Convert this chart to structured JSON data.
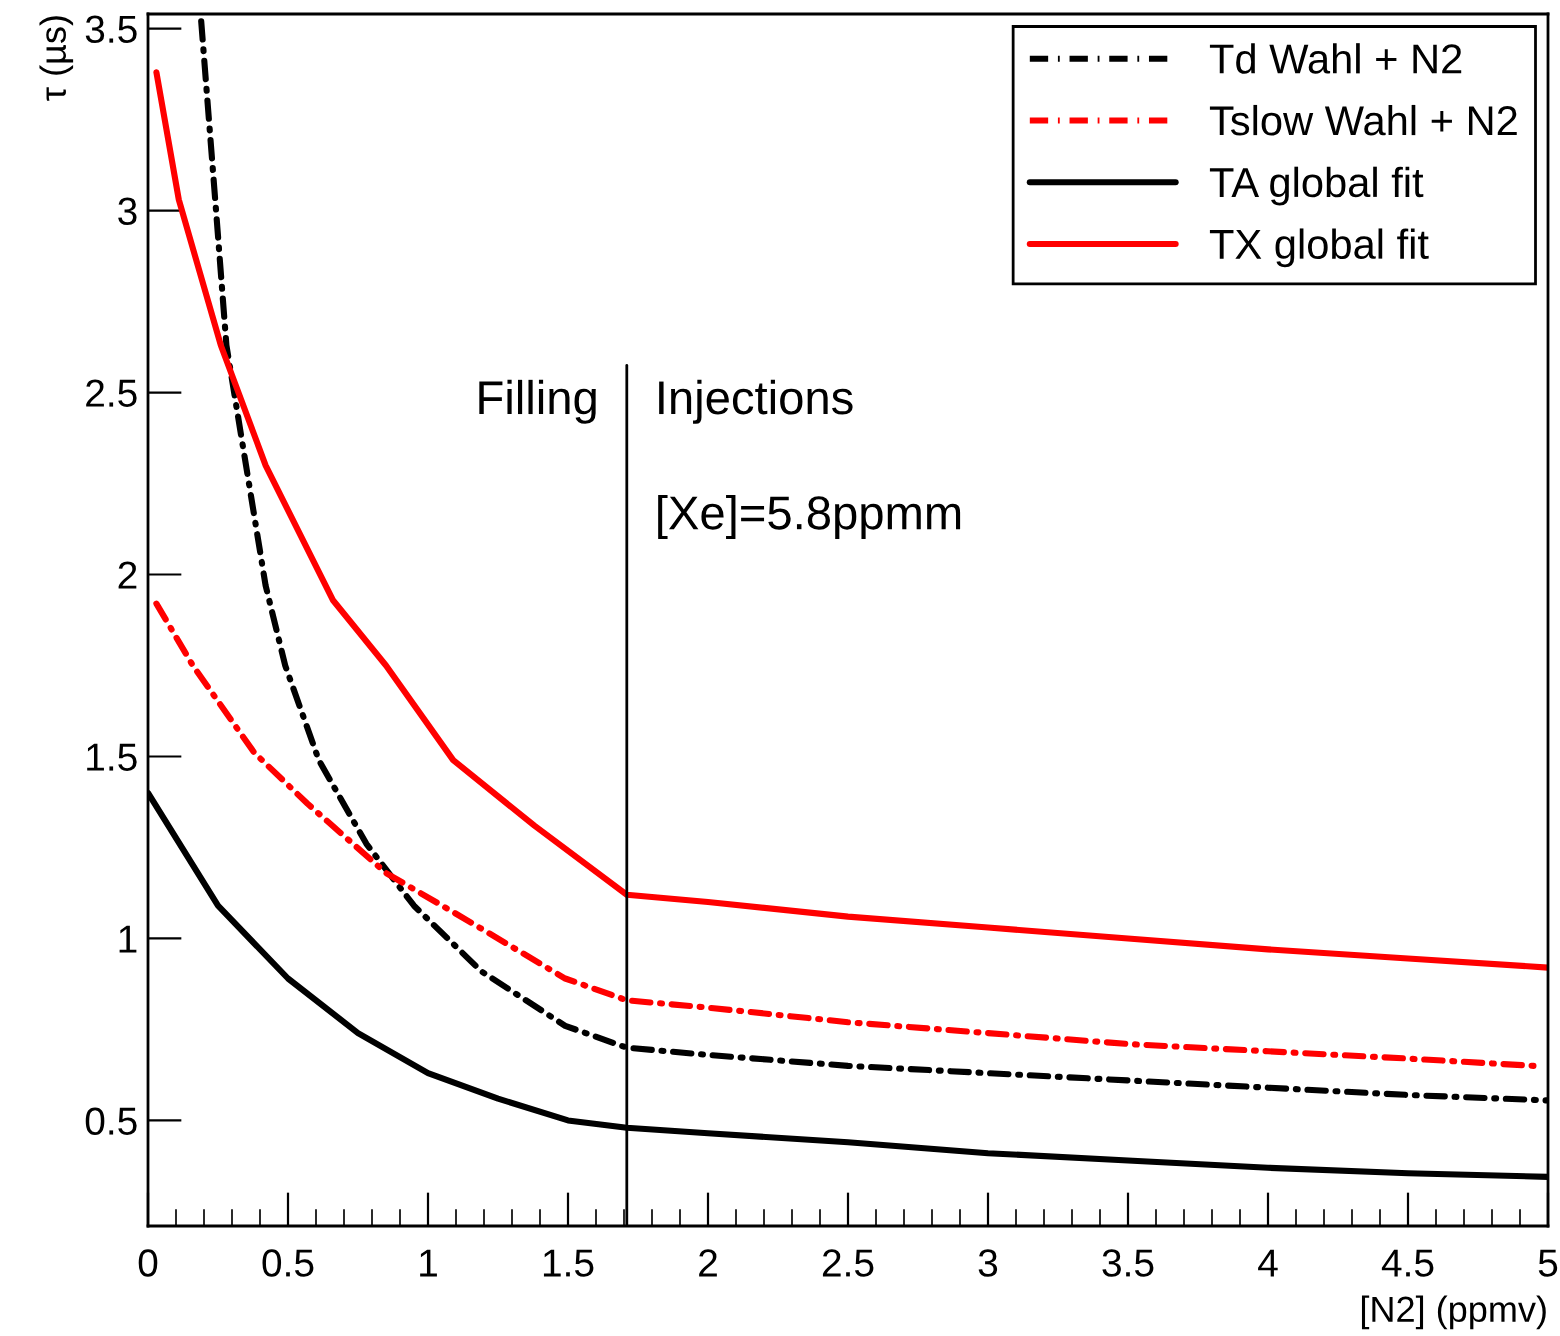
{
  "chart_data": {
    "type": "line",
    "xlabel": "[N2] (ppmv)",
    "ylabel": "τ (µs)",
    "xlim": [
      0,
      5
    ],
    "xticks": [
      0,
      0.5,
      1,
      1.5,
      2,
      2.5,
      3,
      3.5,
      4,
      4.5,
      5
    ],
    "ylim": [
      0.21,
      3.54
    ],
    "yticks": [
      0.5,
      1,
      1.5,
      2,
      2.5,
      3,
      3.5
    ],
    "grid": false,
    "legend": "top right",
    "marker": "none",
    "series": [
      {
        "name": "Td Wahl + N2",
        "color": "#000000",
        "line_style": "dashdot",
        "x": [
          0.19,
          0.24,
          0.28,
          0.35,
          0.42,
          0.49,
          0.61,
          0.78,
          0.95,
          1.19,
          1.49,
          1.71,
          2,
          2.5,
          3,
          3.5,
          4,
          4.5,
          5
        ],
        "values": [
          3.52,
          3.03,
          2.63,
          2.3,
          1.97,
          1.75,
          1.49,
          1.26,
          1.09,
          0.91,
          0.76,
          0.7,
          0.68,
          0.65,
          0.63,
          0.61,
          0.59,
          0.57,
          0.555
        ]
      },
      {
        "name": "Tslow Wahl + N2",
        "color": "#ff0000",
        "line_style": "dashdot",
        "x": [
          0.03,
          0.16,
          0.38,
          0.57,
          0.85,
          1.14,
          1.49,
          1.71,
          2,
          2.5,
          3,
          3.5,
          4,
          4.5,
          4.95
        ],
        "values": [
          1.92,
          1.75,
          1.51,
          1.37,
          1.18,
          1.05,
          0.89,
          0.83,
          0.81,
          0.77,
          0.74,
          0.71,
          0.69,
          0.67,
          0.65
        ]
      },
      {
        "name": "TA global fit",
        "color": "#000000",
        "line_style": "solid",
        "x": [
          0,
          0.25,
          0.5,
          0.75,
          1,
          1.25,
          1.5,
          1.71,
          2,
          2.5,
          3,
          3.5,
          4,
          4.5,
          5
        ],
        "values": [
          1.4,
          1.09,
          0.89,
          0.74,
          0.63,
          0.56,
          0.5,
          0.48,
          0.465,
          0.44,
          0.41,
          0.39,
          0.37,
          0.355,
          0.345
        ]
      },
      {
        "name": "TX global fit",
        "color": "#ff0000",
        "line_style": "solid",
        "x": [
          0.03,
          0.11,
          0.26,
          0.42,
          0.66,
          0.85,
          1.09,
          1.38,
          1.71,
          2,
          2.5,
          3,
          3.5,
          4,
          4.5,
          5
        ],
        "values": [
          3.38,
          3.03,
          2.63,
          2.3,
          1.93,
          1.75,
          1.49,
          1.31,
          1.12,
          1.1,
          1.06,
          1.03,
          1.0,
          0.97,
          0.945,
          0.92
        ]
      }
    ],
    "ref_lines": [
      {
        "axis": "x",
        "value": 1.71,
        "color": "#000000",
        "line_style": "solid"
      }
    ],
    "annotations": [
      "Filling",
      "Injections",
      "[Xe]=5.8ppmm"
    ]
  }
}
